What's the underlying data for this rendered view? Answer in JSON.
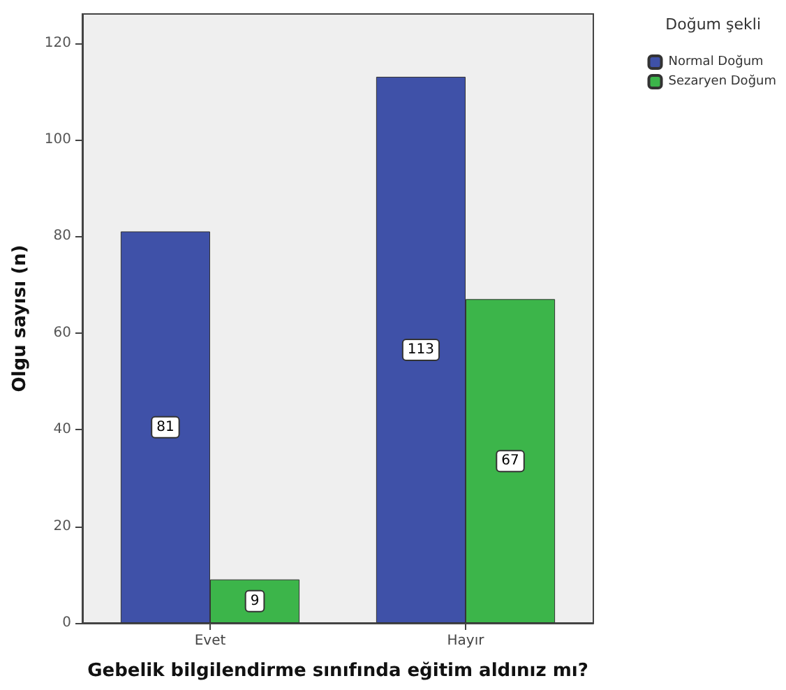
{
  "chart_data": {
    "type": "bar",
    "xlabel": "Gebelik bilgilendirme sınıfında eğitim aldınız mı?",
    "ylabel": "Olgu sayısı (n)",
    "legend_title": "Doğum şekli",
    "categories": [
      "Evet",
      "Hayır"
    ],
    "series": [
      {
        "name": "Normal Doğum",
        "color": "#3f51a8",
        "values": [
          81,
          113
        ]
      },
      {
        "name": "Sezaryen Doğum",
        "color": "#3cb54a",
        "values": [
          9,
          67
        ]
      }
    ],
    "ylim": [
      0,
      126
    ],
    "yticks": [
      0,
      20,
      40,
      60,
      80,
      100,
      120
    ],
    "grid": false,
    "legend": "top right",
    "data_labels": true
  }
}
